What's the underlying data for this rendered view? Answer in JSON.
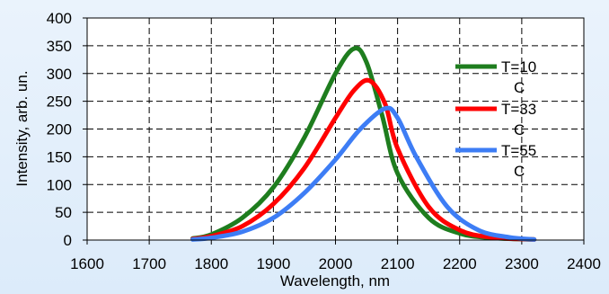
{
  "chart_data": {
    "type": "line",
    "xlabel": "Wavelength, nm",
    "ylabel": "Intensity, arb. un.",
    "xlim": [
      1600,
      2400
    ],
    "ylim": [
      0,
      400
    ],
    "x_ticks": [
      "1600",
      "1700",
      "1800",
      "1900",
      "2000",
      "2100",
      "2200",
      "2300",
      "2400"
    ],
    "y_ticks": [
      "0",
      "50",
      "100",
      "150",
      "200",
      "250",
      "300",
      "350",
      "400"
    ],
    "grid": true,
    "legend_position": "right",
    "series": [
      {
        "name": "T=10\nC",
        "color": "#1e7d1e",
        "x": [
          1770,
          1800,
          1850,
          1900,
          1950,
          2000,
          2030,
          2050,
          2075,
          2100,
          2150,
          2200,
          2250,
          2320
        ],
        "y": [
          3,
          10,
          40,
          95,
          185,
          300,
          345,
          320,
          225,
          120,
          40,
          12,
          4,
          1
        ]
      },
      {
        "name": "T=33\nC",
        "color": "#ff0000",
        "x": [
          1770,
          1800,
          1850,
          1900,
          1950,
          2000,
          2030,
          2055,
          2080,
          2100,
          2150,
          2200,
          2250,
          2320
        ],
        "y": [
          2,
          7,
          25,
          65,
          130,
          220,
          270,
          287,
          245,
          165,
          60,
          18,
          5,
          1
        ]
      },
      {
        "name": "T=55\nC",
        "color": "#3d7df5",
        "x": [
          1770,
          1800,
          1850,
          1900,
          1950,
          2000,
          2040,
          2080,
          2100,
          2130,
          2180,
          2230,
          2280,
          2320
        ],
        "y": [
          1,
          4,
          15,
          40,
          85,
          145,
          200,
          237,
          220,
          150,
          60,
          18,
          5,
          1
        ]
      }
    ]
  }
}
